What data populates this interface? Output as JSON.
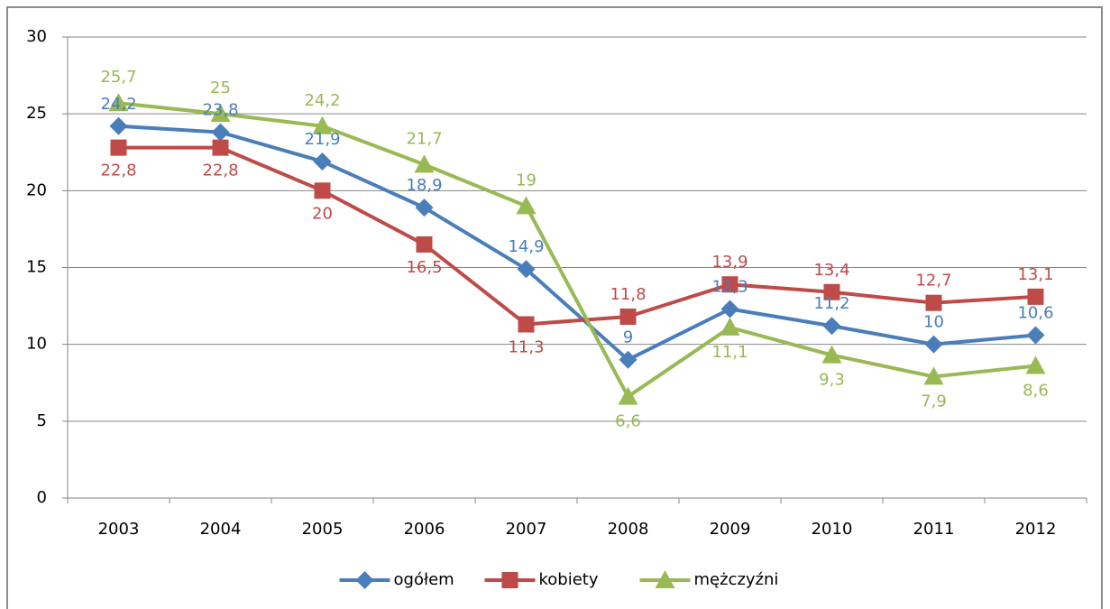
{
  "chart_data": {
    "type": "line",
    "categories": [
      "2003",
      "2004",
      "2005",
      "2006",
      "2007",
      "2008",
      "2009",
      "2010",
      "2011",
      "2012"
    ],
    "series": [
      {
        "name": "ogółem",
        "color": "#4a7ebb",
        "marker": "diamond",
        "values": [
          24.2,
          23.8,
          21.9,
          18.9,
          14.9,
          9,
          12.3,
          11.2,
          10,
          10.6
        ],
        "value_labels": [
          "24,2",
          "23,8",
          "21,9",
          "18,9",
          "14,9",
          "9",
          "12,3",
          "11,2",
          "10",
          "10,6"
        ]
      },
      {
        "name": "kobiety",
        "color": "#be4b48",
        "marker": "square",
        "values": [
          22.8,
          22.8,
          20,
          16.5,
          11.3,
          11.8,
          13.9,
          13.4,
          12.7,
          13.1
        ],
        "value_labels": [
          "22,8",
          "22,8",
          "20",
          "16,5",
          "11,3",
          "11,8",
          "13,9",
          "13,4",
          "12,7",
          "13,1"
        ]
      },
      {
        "name": "mężczyźni",
        "color": "#98b954",
        "marker": "triangle",
        "values": [
          25.7,
          25,
          24.2,
          21.7,
          19,
          6.6,
          11.1,
          9.3,
          7.9,
          8.6
        ],
        "value_labels": [
          "25,7",
          "25",
          "24,2",
          "21,7",
          "19",
          "6,6",
          "11,1",
          "9,3",
          "7,9",
          "8,6"
        ]
      }
    ],
    "ylim": [
      0,
      30
    ],
    "yticks": [
      0,
      5,
      10,
      15,
      20,
      25,
      30
    ],
    "grid": true,
    "legend": "bottom"
  }
}
